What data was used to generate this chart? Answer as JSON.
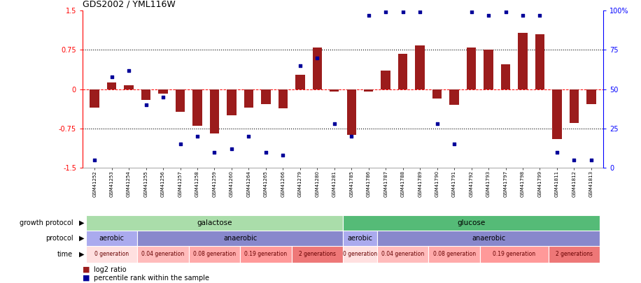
{
  "title": "GDS2002 / YML116W",
  "samples": [
    "GSM41252",
    "GSM41253",
    "GSM41254",
    "GSM41255",
    "GSM41256",
    "GSM41257",
    "GSM41258",
    "GSM41259",
    "GSM41260",
    "GSM41264",
    "GSM41265",
    "GSM41266",
    "GSM41279",
    "GSM41280",
    "GSM41281",
    "GSM41785",
    "GSM41786",
    "GSM41787",
    "GSM41788",
    "GSM41789",
    "GSM41790",
    "GSM41791",
    "GSM41792",
    "GSM41793",
    "GSM41797",
    "GSM41798",
    "GSM41799",
    "GSM41811",
    "GSM41812",
    "GSM41813"
  ],
  "log2_ratio": [
    -0.35,
    0.13,
    0.07,
    -0.2,
    -0.08,
    -0.43,
    -0.7,
    -0.85,
    -0.5,
    -0.35,
    -0.28,
    -0.36,
    0.28,
    0.8,
    -0.05,
    -0.87,
    -0.05,
    0.35,
    0.68,
    0.83,
    -0.18,
    -0.3,
    0.8,
    0.75,
    0.47,
    1.07,
    1.05,
    -0.95,
    -0.65,
    -0.28
  ],
  "percentile": [
    5,
    58,
    62,
    40,
    45,
    15,
    20,
    10,
    12,
    20,
    10,
    8,
    65,
    70,
    28,
    20,
    97,
    99,
    99,
    99,
    28,
    15,
    99,
    97,
    99,
    97,
    97,
    10,
    5,
    5
  ],
  "bar_color": "#9b1c1c",
  "dot_color": "#000099",
  "ylim_left": [
    -1.5,
    1.5
  ],
  "ylim_right": [
    0,
    100
  ],
  "yticks_left": [
    -1.5,
    -0.75,
    0.0,
    0.75,
    1.5
  ],
  "yticks_right": [
    0,
    25,
    50,
    75,
    100
  ],
  "ytick_labels_left": [
    "-1.5",
    "-0.75",
    "0",
    "0.75",
    "1.5"
  ],
  "ytick_labels_right": [
    "0",
    "25",
    "50",
    "75",
    "100%"
  ],
  "hlines_dotted": [
    -0.75,
    0.75
  ],
  "hline_red_dashed": 0.0,
  "growth_protocol_groups": [
    {
      "label": "galactose",
      "start": 0,
      "end": 15,
      "color": "#aaddaa"
    },
    {
      "label": "glucose",
      "start": 15,
      "end": 30,
      "color": "#55bb77"
    }
  ],
  "protocol_groups": [
    {
      "label": "aerobic",
      "start": 0,
      "end": 3,
      "color": "#aaaaee"
    },
    {
      "label": "anaerobic",
      "start": 3,
      "end": 15,
      "color": "#8888cc"
    },
    {
      "label": "aerobic",
      "start": 15,
      "end": 17,
      "color": "#aaaaee"
    },
    {
      "label": "anaerobic",
      "start": 17,
      "end": 30,
      "color": "#8888cc"
    }
  ],
  "time_groups": [
    {
      "label": "0 generation",
      "start": 0,
      "end": 3,
      "color": "#ffe0e0"
    },
    {
      "label": "0.04 generation",
      "start": 3,
      "end": 6,
      "color": "#ffbbbb"
    },
    {
      "label": "0.08 generation",
      "start": 6,
      "end": 9,
      "color": "#ffaaaa"
    },
    {
      "label": "0.19 generation",
      "start": 9,
      "end": 12,
      "color": "#ff9999"
    },
    {
      "label": "2 generations",
      "start": 12,
      "end": 15,
      "color": "#ee7777"
    },
    {
      "label": "0 generation",
      "start": 15,
      "end": 17,
      "color": "#ffe0e0"
    },
    {
      "label": "0.04 generation",
      "start": 17,
      "end": 20,
      "color": "#ffbbbb"
    },
    {
      "label": "0.08 generation",
      "start": 20,
      "end": 23,
      "color": "#ffaaaa"
    },
    {
      "label": "0.19 generation",
      "start": 23,
      "end": 27,
      "color": "#ff9999"
    },
    {
      "label": "2 generations",
      "start": 27,
      "end": 30,
      "color": "#ee7777"
    }
  ],
  "row_labels": [
    "growth protocol",
    "protocol",
    "time"
  ],
  "legend_label_log2": "log2 ratio",
  "legend_label_pct": "percentile rank within the sample",
  "legend_color_log2": "#9b1c1c",
  "legend_color_pct": "#000099"
}
